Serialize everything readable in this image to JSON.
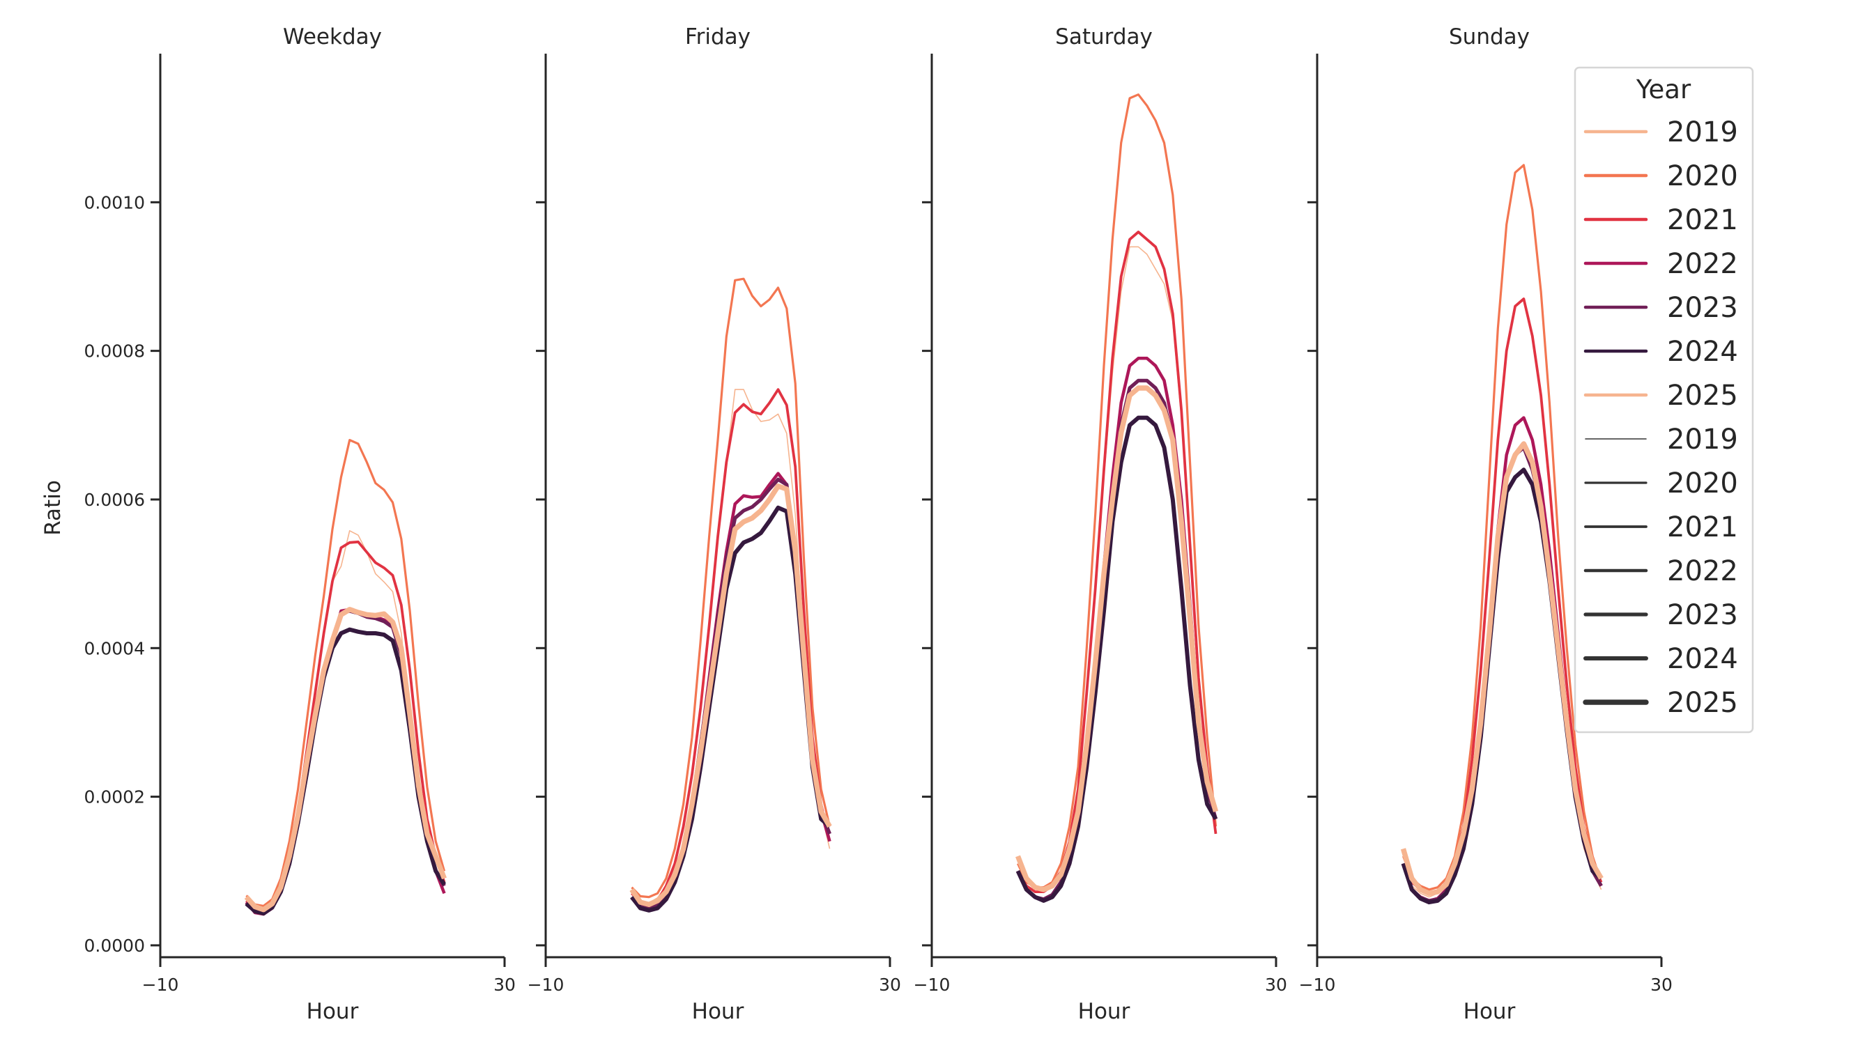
{
  "chart_data": {
    "type": "line",
    "xlabel": "Hour",
    "ylabel": "Ratio",
    "xlim": [
      -10,
      30
    ],
    "ylim": [
      -1.6e-05,
      0.0012
    ],
    "xticks": [
      -10,
      30
    ],
    "xtick_labels": [
      "−10",
      "30"
    ],
    "yticks": [
      0,
      0.0002,
      0.0004,
      0.0006,
      0.0008,
      0.001
    ],
    "ytick_labels": [
      "0.0000",
      "0.0002",
      "0.0004",
      "0.0006",
      "0.0008",
      "0.0010"
    ],
    "grid": false,
    "x": [
      0,
      1,
      2,
      3,
      4,
      5,
      6,
      7,
      8,
      9,
      10,
      11,
      12,
      13,
      14,
      15,
      16,
      17,
      18,
      19,
      20,
      21,
      22,
      23
    ],
    "legend": {
      "title": "Year",
      "placement": "top-right",
      "hue_entries": [
        "2019",
        "2020",
        "2021",
        "2022",
        "2023",
        "2024",
        "2025"
      ],
      "size_entries": [
        "2019",
        "2020",
        "2021",
        "2022",
        "2023",
        "2024",
        "2025"
      ]
    },
    "year_colors": {
      "2019": "#f6b48f",
      "2020": "#f37651",
      "2021": "#e13342",
      "2022": "#ad1759",
      "2023": "#701f57",
      "2024": "#35193e",
      "2025": "#f6b48f"
    },
    "size_color": "#333333",
    "panels": [
      {
        "title": "Weekday",
        "series": [
          {
            "name": "2019",
            "values": [
              6.2e-05,
              4.9e-05,
              4.6e-05,
              5.5e-05,
              8e-05,
              0.00012,
              0.00018,
              0.00026,
              0.00034,
              0.00042,
              0.00049,
              0.00051,
              0.000558,
              0.000552,
              0.000529,
              0.0005,
              0.000489,
              0.000476,
              0.00042,
              0.00031,
              0.0002,
              0.00014,
              0.0001,
              7e-05
            ]
          },
          {
            "name": "2020",
            "values": [
              6.7e-05,
              5.5e-05,
              5.3e-05,
              6.2e-05,
              9e-05,
              0.00014,
              0.00021,
              0.0003,
              0.00039,
              0.00047,
              0.00056,
              0.00063,
              0.00068,
              0.000675,
              0.00065,
              0.000622,
              0.000613,
              0.000596,
              0.000547,
              0.00045,
              0.000324,
              0.000213,
              0.00014,
              0.0001
            ]
          },
          {
            "name": "2021",
            "values": [
              6e-05,
              4.7e-05,
              4.5e-05,
              5.5e-05,
              8e-05,
              0.00012,
              0.00018,
              0.00026,
              0.00034,
              0.00042,
              0.00049,
              0.000535,
              0.000542,
              0.000543,
              0.000529,
              0.000515,
              0.000508,
              0.000498,
              0.000458,
              0.00037,
              0.00026,
              0.00017,
              0.00012,
              8.5e-05
            ]
          },
          {
            "name": "2022",
            "values": [
              5.8e-05,
              4.4e-05,
              4.2e-05,
              5e-05,
              7.4e-05,
              0.000115,
              0.00017,
              0.00024,
              0.00031,
              0.00037,
              0.00041,
              0.00045,
              0.000452,
              0.000449,
              0.000444,
              0.000442,
              0.000438,
              0.00043,
              0.00039,
              0.0003,
              0.0002,
              0.00014,
              0.0001,
              7e-05
            ]
          },
          {
            "name": "2023",
            "values": [
              5.7e-05,
              4.5e-05,
              4.3e-05,
              5.1e-05,
              7.5e-05,
              0.000116,
              0.00017,
              0.00024,
              0.00031,
              0.00037,
              0.00041,
              0.000447,
              0.00045,
              0.000447,
              0.000442,
              0.00044,
              0.000436,
              0.000428,
              0.00039,
              0.0003,
              0.0002,
              0.00014,
              0.0001,
              8e-05
            ]
          },
          {
            "name": "2024",
            "values": [
              5.6e-05,
              4.6e-05,
              4.3e-05,
              5.1e-05,
              7.2e-05,
              0.00011,
              0.000165,
              0.00023,
              0.0003,
              0.00036,
              0.0004,
              0.00042,
              0.000425,
              0.000422,
              0.00042,
              0.00042,
              0.000418,
              0.00041,
              0.00037,
              0.00029,
              0.0002,
              0.00014,
              0.0001,
              8.2e-05
            ]
          },
          {
            "name": "2025",
            "values": [
              6.5e-05,
              5.2e-05,
              4.8e-05,
              5.6e-05,
              7.8e-05,
              0.00012,
              0.000175,
              0.000245,
              0.00031,
              0.00037,
              0.00041,
              0.000445,
              0.000452,
              0.000448,
              0.000445,
              0.000444,
              0.000446,
              0.000435,
              0.0004,
              0.00031,
              0.000215,
              0.00015,
              0.00012,
              9e-05
            ]
          }
        ]
      },
      {
        "title": "Friday",
        "series": [
          {
            "name": "2019",
            "values": [
              7.2e-05,
              6e-05,
              5.7e-05,
              6.4e-05,
              8e-05,
              0.00011,
              0.00016,
              0.00023,
              0.00032,
              0.00043,
              0.00055,
              0.00065,
              0.000748,
              0.000748,
              0.000721,
              0.000705,
              0.000707,
              0.000715,
              0.000689,
              0.00058,
              0.0004,
              0.00026,
              0.00018,
              0.00013
            ]
          },
          {
            "name": "2020",
            "values": [
              7.8e-05,
              6.6e-05,
              6.5e-05,
              7e-05,
              9e-05,
              0.00013,
              0.00019,
              0.00028,
              0.00041,
              0.00055,
              0.00068,
              0.000819,
              0.000895,
              0.000897,
              0.000874,
              0.00086,
              0.000869,
              0.000885,
              0.000857,
              0.000756,
              0.00052,
              0.00032,
              0.00021,
              0.00016
            ]
          },
          {
            "name": "2021",
            "values": [
              7e-05,
              5.8e-05,
              5.5e-05,
              6e-05,
              8e-05,
              0.00011,
              0.00016,
              0.00023,
              0.00032,
              0.00043,
              0.00055,
              0.00065,
              0.000717,
              0.000728,
              0.000718,
              0.000715,
              0.00073,
              0.000748,
              0.000727,
              0.000644,
              0.00045,
              0.00028,
              0.00019,
              0.00014
            ]
          },
          {
            "name": "2022",
            "values": [
              6.5e-05,
              5.2e-05,
              5e-05,
              5.5e-05,
              6.8e-05,
              9e-05,
              0.00013,
              0.00019,
              0.00027,
              0.00036,
              0.00045,
              0.00053,
              0.000594,
              0.000605,
              0.000603,
              0.000604,
              0.00062,
              0.000635,
              0.00062,
              0.000534,
              0.0004,
              0.00025,
              0.00018,
              0.00014
            ]
          },
          {
            "name": "2023",
            "values": [
              6.4e-05,
              5.2e-05,
              5e-05,
              5.5e-05,
              6.7e-05,
              9e-05,
              0.00013,
              0.00019,
              0.00027,
              0.00035,
              0.00044,
              0.00052,
              0.000575,
              0.000585,
              0.00059,
              0.0006,
              0.000614,
              0.000627,
              0.00062,
              0.00053,
              0.00039,
              0.00025,
              0.00018,
              0.00015
            ]
          },
          {
            "name": "2024",
            "values": [
              6.5e-05,
              5e-05,
              4.7e-05,
              5e-05,
              6.2e-05,
              8.5e-05,
              0.00012,
              0.00017,
              0.00024,
              0.00032,
              0.0004,
              0.00048,
              0.000528,
              0.000542,
              0.000547,
              0.000555,
              0.000571,
              0.000589,
              0.000584,
              0.0005,
              0.00037,
              0.00024,
              0.00017,
              0.00016
            ]
          },
          {
            "name": "2025",
            "values": [
              7.5e-05,
              5.8e-05,
              5.5e-05,
              6e-05,
              7.2e-05,
              9.5e-05,
              0.00013,
              0.00019,
              0.00026,
              0.00034,
              0.00042,
              0.0005,
              0.00056,
              0.00057,
              0.000575,
              0.000585,
              0.0006,
              0.000618,
              0.000614,
              0.00053,
              0.00039,
              0.00025,
              0.00018,
              0.00016
            ]
          }
        ]
      },
      {
        "title": "Saturday",
        "series": [
          {
            "name": "2019",
            "values": [
              0.0001,
              8e-05,
              7.2e-05,
              7.2e-05,
              8e-05,
              0.0001,
              0.00014,
              0.00021,
              0.00034,
              0.00048,
              0.00063,
              0.00077,
              0.00088,
              0.00094,
              0.00094,
              0.00093,
              0.00091,
              0.00089,
              0.00084,
              0.00071,
              0.00053,
              0.00035,
              0.00023,
              0.00015
            ]
          },
          {
            "name": "2020",
            "values": [
              0.00011,
              8.5e-05,
              7.8e-05,
              7.8e-05,
              8.5e-05,
              0.00011,
              0.00016,
              0.00024,
              0.0004,
              0.00058,
              0.00078,
              0.00095,
              0.00108,
              0.00114,
              0.001145,
              0.00113,
              0.00111,
              0.00108,
              0.00101,
              0.00087,
              0.00065,
              0.00043,
              0.00028,
              0.00016
            ]
          },
          {
            "name": "2021",
            "values": [
              0.0001,
              8e-05,
              7.2e-05,
              7.2e-05,
              8e-05,
              0.0001,
              0.00014,
              0.00021,
              0.00034,
              0.00048,
              0.00064,
              0.00079,
              0.0009,
              0.00095,
              0.00096,
              0.00095,
              0.00094,
              0.00091,
              0.00085,
              0.00072,
              0.00054,
              0.00036,
              0.00024,
              0.00015
            ]
          },
          {
            "name": "2022",
            "values": [
              0.0001,
              7.5e-05,
              6.5e-05,
              6.2e-05,
              6.8e-05,
              8.5e-05,
              0.00012,
              0.00017,
              0.00027,
              0.00039,
              0.00051,
              0.00063,
              0.00073,
              0.00078,
              0.00079,
              0.00079,
              0.00078,
              0.00076,
              0.0007,
              0.0006,
              0.00046,
              0.00031,
              0.00021,
              0.00017
            ]
          },
          {
            "name": "2023",
            "values": [
              0.0001,
              7.5e-05,
              6.5e-05,
              6.2e-05,
              6.8e-05,
              8.5e-05,
              0.00012,
              0.00017,
              0.00026,
              0.00037,
              0.00049,
              0.0006,
              0.0007,
              0.00075,
              0.00076,
              0.00076,
              0.00075,
              0.00073,
              0.00068,
              0.00058,
              0.00045,
              0.0003,
              0.00021,
              0.00017
            ]
          },
          {
            "name": "2024",
            "values": [
              0.0001,
              7.5e-05,
              6.5e-05,
              6e-05,
              6.5e-05,
              8e-05,
              0.00011,
              0.00016,
              0.00024,
              0.00034,
              0.00045,
              0.00057,
              0.00065,
              0.0007,
              0.00071,
              0.00071,
              0.0007,
              0.00067,
              0.0006,
              0.00048,
              0.00035,
              0.00025,
              0.00019,
              0.00017
            ]
          },
          {
            "name": "2025",
            "values": [
              0.00012,
              9e-05,
              7.8e-05,
              7.5e-05,
              8e-05,
              9.5e-05,
              0.00013,
              0.00018,
              0.00027,
              0.00038,
              0.0005,
              0.0006,
              0.00069,
              0.00074,
              0.00075,
              0.00075,
              0.00074,
              0.00072,
              0.00068,
              0.00057,
              0.00044,
              0.0003,
              0.00022,
              0.00018
            ]
          }
        ]
      },
      {
        "title": "Sunday",
        "series": [
          {
            "name": "2019",
            "values": [
              0.00011,
              8e-05,
              7e-05,
              6.5e-05,
              7e-05,
              8e-05,
              0.00011,
              0.00015,
              0.00022,
              0.00031,
              0.00042,
              0.00054,
              0.00062,
              0.00066,
              0.00067,
              0.00064,
              0.00058,
              0.00049,
              0.00039,
              0.00029,
              0.0002,
              0.00013,
              0.0001,
              7.5e-05
            ]
          },
          {
            "name": "2020",
            "values": [
              0.00012,
              9e-05,
              8e-05,
              7.5e-05,
              7.8e-05,
              9e-05,
              0.00012,
              0.00018,
              0.00028,
              0.00043,
              0.00063,
              0.00083,
              0.00097,
              0.00104,
              0.00105,
              0.00099,
              0.00088,
              0.00073,
              0.00055,
              0.0004,
              0.00027,
              0.00018,
              0.00012,
              8.5e-05
            ]
          },
          {
            "name": "2021",
            "values": [
              0.00011,
              8.5e-05,
              7.5e-05,
              7e-05,
              7.2e-05,
              8.5e-05,
              0.00011,
              0.00016,
              0.00025,
              0.00037,
              0.00052,
              0.00068,
              0.0008,
              0.00086,
              0.00087,
              0.00082,
              0.00074,
              0.00062,
              0.00048,
              0.00035,
              0.00024,
              0.00016,
              0.00011,
              8.5e-05
            ]
          },
          {
            "name": "2022",
            "values": [
              0.00011,
              7.5e-05,
              6.5e-05,
              6e-05,
              6.3e-05,
              7.5e-05,
              0.0001,
              0.00014,
              0.0002,
              0.0003,
              0.00043,
              0.00056,
              0.00066,
              0.0007,
              0.00071,
              0.00068,
              0.00062,
              0.00053,
              0.00042,
              0.00031,
              0.00021,
              0.00014,
              0.0001,
              8e-05
            ]
          },
          {
            "name": "2023",
            "values": [
              0.00011,
              7.5e-05,
              6.4e-05,
              6e-05,
              6.2e-05,
              7.3e-05,
              0.0001,
              0.00014,
              0.0002,
              0.00029,
              0.00041,
              0.00054,
              0.00063,
              0.00066,
              0.00067,
              0.00064,
              0.00059,
              0.00051,
              0.0004,
              0.0003,
              0.0002,
              0.00014,
              0.0001,
              8e-05
            ]
          },
          {
            "name": "2024",
            "values": [
              0.00011,
              7.5e-05,
              6.3e-05,
              5.8e-05,
              6e-05,
              7e-05,
              9.5e-05,
              0.00013,
              0.00019,
              0.00028,
              0.0004,
              0.00052,
              0.00061,
              0.00063,
              0.00064,
              0.00062,
              0.00057,
              0.00049,
              0.00039,
              0.00029,
              0.0002,
              0.00014,
              0.0001,
              9e-05
            ]
          },
          {
            "name": "2025",
            "values": [
              0.00013,
              9e-05,
              7.5e-05,
              7e-05,
              7.2e-05,
              8.2e-05,
              0.00011,
              0.00015,
              0.00021,
              0.0003,
              0.00042,
              0.00055,
              0.00063,
              0.00066,
              0.000675,
              0.00065,
              0.00059,
              0.0005,
              0.0004,
              0.0003,
              0.00021,
              0.00015,
              0.00011,
              9e-05
            ]
          }
        ]
      }
    ]
  }
}
